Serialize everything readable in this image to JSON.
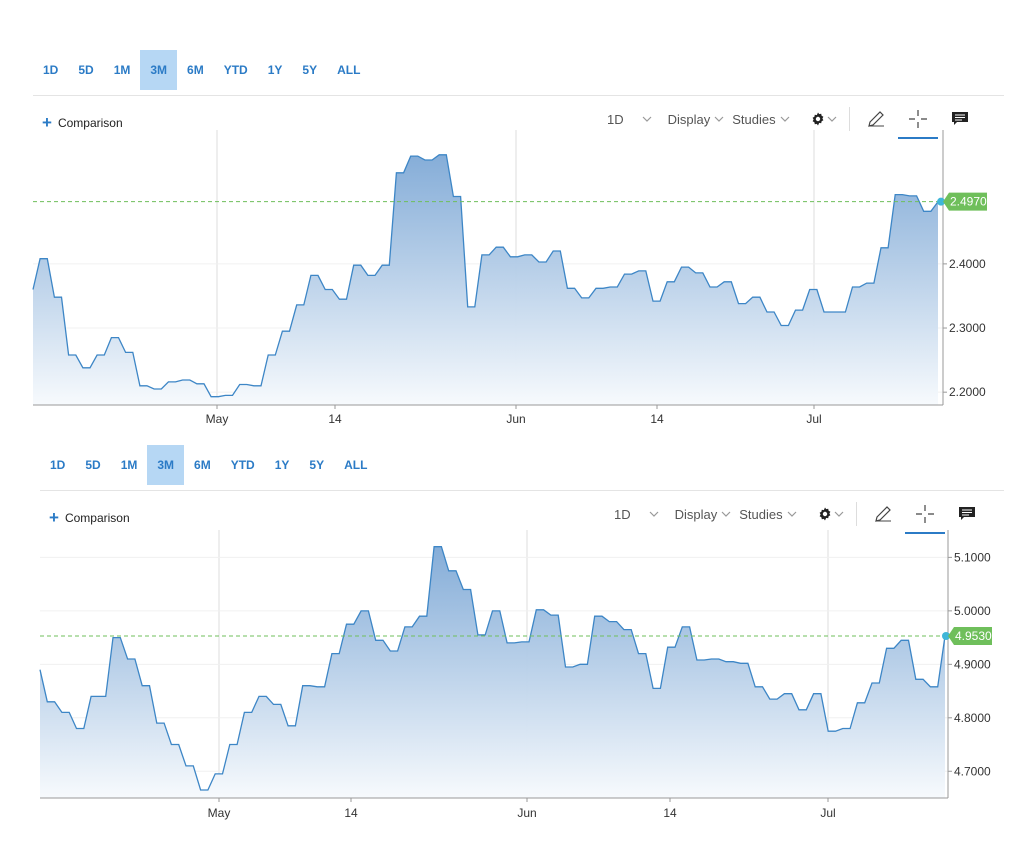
{
  "ranges": [
    "1D",
    "5D",
    "1M",
    "3M",
    "6M",
    "YTD",
    "1Y",
    "5Y",
    "ALL"
  ],
  "active_range": "3M",
  "toolbar": {
    "comparison_label": "Comparison",
    "interval_label": "1D",
    "display_label": "Display",
    "studies_label": "Studies"
  },
  "icons": {
    "plus": "plus-icon",
    "settings": "gear-icon",
    "draw": "pencil-icon",
    "crosshair": "crosshair-icon",
    "news": "news-icon",
    "chevron": "chevron-down-icon"
  },
  "colors": {
    "line": "#3d86c6",
    "fill_top": "#7fa9d6",
    "fill_bottom": "#f7fafd",
    "last_price": "#6fbf5b",
    "accent": "#2b7bc6"
  },
  "chart_data": [
    {
      "type": "area",
      "x_ticks": [
        "May",
        "14",
        "Jun",
        "14",
        "Jul"
      ],
      "y_ticks": [
        "2.2000",
        "2.3000",
        "2.4000"
      ],
      "ylim": [
        2.18,
        2.59
      ],
      "grid": true,
      "last_value_label": "2.4970",
      "last_value": 2.497,
      "values": [
        2.36,
        2.408,
        2.408,
        2.348,
        2.348,
        2.258,
        2.258,
        2.238,
        2.238,
        2.258,
        2.258,
        2.285,
        2.285,
        2.262,
        2.262,
        2.21,
        2.21,
        2.205,
        2.205,
        2.216,
        2.216,
        2.219,
        2.219,
        2.213,
        2.213,
        2.193,
        2.193,
        2.195,
        2.195,
        2.212,
        2.212,
        2.21,
        2.21,
        2.258,
        2.258,
        2.295,
        2.295,
        2.336,
        2.336,
        2.382,
        2.382,
        2.36,
        2.36,
        2.345,
        2.345,
        2.398,
        2.398,
        2.382,
        2.382,
        2.398,
        2.398,
        2.542,
        2.542,
        2.568,
        2.568,
        2.562,
        2.562,
        2.57,
        2.57,
        2.505,
        2.505,
        2.333,
        2.333,
        2.414,
        2.414,
        2.426,
        2.426,
        2.411,
        2.411,
        2.414,
        2.414,
        2.403,
        2.403,
        2.42,
        2.42,
        2.362,
        2.362,
        2.347,
        2.347,
        2.362,
        2.362,
        2.364,
        2.364,
        2.384,
        2.384,
        2.389,
        2.389,
        2.342,
        2.342,
        2.372,
        2.372,
        2.395,
        2.395,
        2.386,
        2.386,
        2.364,
        2.364,
        2.372,
        2.372,
        2.338,
        2.338,
        2.348,
        2.348,
        2.325,
        2.325,
        2.304,
        2.304,
        2.328,
        2.328,
        2.36,
        2.36,
        2.325,
        2.325,
        2.325,
        2.325,
        2.364,
        2.364,
        2.37,
        2.37,
        2.425,
        2.425,
        2.508,
        2.508,
        2.506,
        2.506,
        2.482,
        2.482,
        2.497
      ]
    },
    {
      "type": "area",
      "x_ticks": [
        "May",
        "14",
        "Jun",
        "14",
        "Jul"
      ],
      "y_ticks": [
        "4.7000",
        "4.8000",
        "4.9000",
        "5.0000",
        "5.1000"
      ],
      "ylim": [
        4.65,
        5.14
      ],
      "grid": true,
      "last_value_label": "4.9530",
      "last_value": 4.953,
      "values": [
        4.89,
        4.83,
        4.83,
        4.81,
        4.81,
        4.78,
        4.78,
        4.84,
        4.84,
        4.84,
        4.95,
        4.95,
        4.91,
        4.91,
        4.86,
        4.86,
        4.79,
        4.79,
        4.75,
        4.75,
        4.71,
        4.71,
        4.665,
        4.665,
        4.695,
        4.695,
        4.75,
        4.75,
        4.81,
        4.81,
        4.84,
        4.84,
        4.825,
        4.825,
        4.785,
        4.785,
        4.86,
        4.86,
        4.858,
        4.858,
        4.92,
        4.92,
        4.975,
        4.975,
        5.0,
        5.0,
        4.945,
        4.945,
        4.925,
        4.925,
        4.97,
        4.97,
        4.99,
        4.99,
        5.12,
        5.12,
        5.075,
        5.075,
        5.04,
        5.04,
        4.955,
        4.955,
        5.0,
        5.0,
        4.94,
        4.94,
        4.942,
        4.942,
        5.002,
        5.002,
        4.992,
        4.992,
        4.895,
        4.895,
        4.9,
        4.9,
        4.99,
        4.99,
        4.98,
        4.98,
        4.965,
        4.965,
        4.92,
        4.92,
        4.855,
        4.855,
        4.932,
        4.932,
        4.97,
        4.97,
        4.908,
        4.908,
        4.91,
        4.91,
        4.905,
        4.905,
        4.902,
        4.902,
        4.858,
        4.858,
        4.835,
        4.835,
        4.845,
        4.845,
        4.815,
        4.815,
        4.845,
        4.845,
        4.775,
        4.775,
        4.78,
        4.78,
        4.828,
        4.828,
        4.865,
        4.865,
        4.93,
        4.93,
        4.945,
        4.945,
        4.872,
        4.872,
        4.858,
        4.858,
        4.953
      ]
    }
  ]
}
